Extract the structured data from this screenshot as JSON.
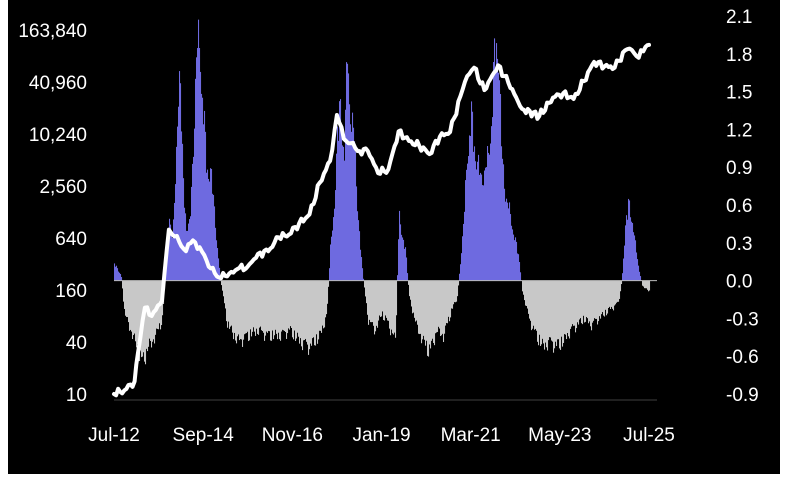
{
  "chart_data": {
    "type": "bar+line",
    "title": "",
    "xlabel": "",
    "ylabel_left": "",
    "ylabel_right": "",
    "colors": {
      "background": "#000000",
      "positive_bars": "#6e6ae0",
      "negative_bars": "#c8c8c8",
      "line": "#ffffff",
      "text": "#ffffff",
      "zero_line": "#bdbdbd"
    },
    "left_axis": {
      "scale": "log",
      "ticks": [
        "163,840",
        "40,960",
        "10,240",
        "2,560",
        "640",
        "160",
        "40",
        "10"
      ],
      "tick_values": [
        163840,
        40960,
        10240,
        2560,
        640,
        160,
        40,
        10
      ],
      "ylim": [
        10,
        163840
      ]
    },
    "right_axis": {
      "scale": "linear",
      "ticks": [
        "2.1",
        "1.8",
        "1.5",
        "1.2",
        "0.9",
        "0.6",
        "0.3",
        "0.0",
        "-0.3",
        "-0.6",
        "-0.9"
      ],
      "tick_values": [
        2.1,
        1.8,
        1.5,
        1.2,
        0.9,
        0.6,
        0.3,
        0.0,
        -0.3,
        -0.6,
        -0.9
      ],
      "ylim": [
        -0.9,
        2.1
      ]
    },
    "x_axis": {
      "ticks": [
        "Jul-12",
        "Sep-14",
        "Nov-16",
        "Jan-19",
        "Mar-21",
        "May-23",
        "Jul-25"
      ],
      "tick_dates": [
        "2012-07",
        "2014-09",
        "2016-11",
        "2019-01",
        "2021-03",
        "2023-05",
        "2025-07"
      ],
      "xlim": [
        "2012-07",
        "2025-07"
      ]
    },
    "line_series": {
      "axis": "left",
      "points": [
        [
          "2012-07",
          10
        ],
        [
          "2012-10",
          11
        ],
        [
          "2013-01",
          14
        ],
        [
          "2013-02",
          30
        ],
        [
          "2013-04",
          100
        ],
        [
          "2013-06",
          80
        ],
        [
          "2013-09",
          120
        ],
        [
          "2013-11",
          800
        ],
        [
          "2013-12",
          700
        ],
        [
          "2014-02",
          580
        ],
        [
          "2014-04",
          450
        ],
        [
          "2014-06",
          600
        ],
        [
          "2014-08",
          500
        ],
        [
          "2014-10",
          350
        ],
        [
          "2015-01",
          230
        ],
        [
          "2015-04",
          230
        ],
        [
          "2015-07",
          280
        ],
        [
          "2015-10",
          300
        ],
        [
          "2016-01",
          420
        ],
        [
          "2016-04",
          450
        ],
        [
          "2016-07",
          650
        ],
        [
          "2016-10",
          700
        ],
        [
          "2017-01",
          950
        ],
        [
          "2017-04",
          1200
        ],
        [
          "2017-07",
          2800
        ],
        [
          "2017-10",
          5000
        ],
        [
          "2017-12",
          17000
        ],
        [
          "2018-02",
          9000
        ],
        [
          "2018-04",
          8000
        ],
        [
          "2018-06",
          6500
        ],
        [
          "2018-09",
          6500
        ],
        [
          "2018-12",
          3600
        ],
        [
          "2019-03",
          4000
        ],
        [
          "2019-06",
          11000
        ],
        [
          "2019-09",
          8500
        ],
        [
          "2019-12",
          7500
        ],
        [
          "2020-03",
          6000
        ],
        [
          "2020-06",
          9500
        ],
        [
          "2020-09",
          10800
        ],
        [
          "2020-12",
          28000
        ],
        [
          "2021-02",
          48000
        ],
        [
          "2021-04",
          60000
        ],
        [
          "2021-07",
          33000
        ],
        [
          "2021-11",
          64000
        ],
        [
          "2022-02",
          40000
        ],
        [
          "2022-06",
          20000
        ],
        [
          "2022-11",
          16500
        ],
        [
          "2023-03",
          27000
        ],
        [
          "2023-06",
          30500
        ],
        [
          "2023-09",
          26000
        ],
        [
          "2023-12",
          42000
        ],
        [
          "2024-03",
          70000
        ],
        [
          "2024-06",
          62000
        ],
        [
          "2024-09",
          60000
        ],
        [
          "2024-12",
          95000
        ],
        [
          "2025-02",
          96000
        ],
        [
          "2025-04",
          78000
        ],
        [
          "2025-06",
          105000
        ],
        [
          "2025-07",
          110000
        ]
      ]
    },
    "bar_series": {
      "axis": "right",
      "points": [
        [
          "2012-07",
          0.15
        ],
        [
          "2012-09",
          0.05
        ],
        [
          "2012-10",
          -0.3
        ],
        [
          "2013-01",
          -0.55
        ],
        [
          "2013-03",
          -0.75
        ],
        [
          "2013-05",
          -0.6
        ],
        [
          "2013-07",
          -0.5
        ],
        [
          "2013-09",
          -0.35
        ],
        [
          "2013-11",
          0.55
        ],
        [
          "2013-12",
          0.4
        ],
        [
          "2014-01",
          1.0
        ],
        [
          "2014-02",
          2.1
        ],
        [
          "2014-03",
          0.9
        ],
        [
          "2014-04",
          0.5
        ],
        [
          "2014-05",
          0.5
        ],
        [
          "2014-06",
          1.2
        ],
        [
          "2014-07",
          2.1
        ],
        [
          "2014-08",
          2.1
        ],
        [
          "2014-09",
          1.5
        ],
        [
          "2014-10",
          1.0
        ],
        [
          "2014-11",
          1.0
        ],
        [
          "2014-12",
          0.7
        ],
        [
          "2015-01",
          0.3
        ],
        [
          "2015-02",
          0.0
        ],
        [
          "2015-04",
          -0.4
        ],
        [
          "2015-07",
          -0.55
        ],
        [
          "2015-10",
          -0.5
        ],
        [
          "2016-01",
          -0.45
        ],
        [
          "2016-04",
          -0.5
        ],
        [
          "2016-07",
          -0.5
        ],
        [
          "2016-10",
          -0.45
        ],
        [
          "2017-01",
          -0.55
        ],
        [
          "2017-04",
          -0.6
        ],
        [
          "2017-07",
          -0.5
        ],
        [
          "2017-09",
          -0.3
        ],
        [
          "2017-10",
          0.3
        ],
        [
          "2017-11",
          0.6
        ],
        [
          "2017-12",
          1.3
        ],
        [
          "2018-01",
          1.6
        ],
        [
          "2018-02",
          1.1
        ],
        [
          "2018-03",
          2.1
        ],
        [
          "2018-04",
          1.4
        ],
        [
          "2018-05",
          1.3
        ],
        [
          "2018-06",
          0.6
        ],
        [
          "2018-07",
          0.2
        ],
        [
          "2018-08",
          -0.1
        ],
        [
          "2018-09",
          -0.35
        ],
        [
          "2018-11",
          -0.45
        ],
        [
          "2019-01",
          -0.3
        ],
        [
          "2019-03",
          -0.4
        ],
        [
          "2019-05",
          -0.55
        ],
        [
          "2019-06",
          0.6
        ],
        [
          "2019-07",
          0.4
        ],
        [
          "2019-08",
          0.25
        ],
        [
          "2019-09",
          -0.15
        ],
        [
          "2019-11",
          -0.4
        ],
        [
          "2020-01",
          -0.55
        ],
        [
          "2020-03",
          -0.65
        ],
        [
          "2020-05",
          -0.45
        ],
        [
          "2020-07",
          -0.5
        ],
        [
          "2020-09",
          -0.3
        ],
        [
          "2020-11",
          -0.15
        ],
        [
          "2020-12",
          0.2
        ],
        [
          "2021-01",
          0.6
        ],
        [
          "2021-02",
          1.2
        ],
        [
          "2021-03",
          1.5
        ],
        [
          "2021-04",
          1.2
        ],
        [
          "2021-06",
          0.9
        ],
        [
          "2021-08",
          1.1
        ],
        [
          "2021-09",
          1.5
        ],
        [
          "2021-10",
          2.1
        ],
        [
          "2021-11",
          2.1
        ],
        [
          "2021-12",
          1.1
        ],
        [
          "2022-01",
          0.8
        ],
        [
          "2022-03",
          0.5
        ],
        [
          "2022-05",
          0.2
        ],
        [
          "2022-06",
          -0.1
        ],
        [
          "2022-08",
          -0.35
        ],
        [
          "2022-10",
          -0.5
        ],
        [
          "2022-12",
          -0.6
        ],
        [
          "2023-02",
          -0.55
        ],
        [
          "2023-04",
          -0.6
        ],
        [
          "2023-06",
          -0.55
        ],
        [
          "2023-08",
          -0.45
        ],
        [
          "2023-10",
          -0.4
        ],
        [
          "2023-12",
          -0.35
        ],
        [
          "2024-02",
          -0.4
        ],
        [
          "2024-04",
          -0.35
        ],
        [
          "2024-06",
          -0.3
        ],
        [
          "2024-08",
          -0.25
        ],
        [
          "2024-10",
          -0.2
        ],
        [
          "2024-11",
          0.0
        ],
        [
          "2024-12",
          0.5
        ],
        [
          "2025-01",
          0.7
        ],
        [
          "2025-02",
          0.55
        ],
        [
          "2025-03",
          0.3
        ],
        [
          "2025-04",
          0.1
        ],
        [
          "2025-05",
          -0.05
        ],
        [
          "2025-07",
          -0.1
        ]
      ]
    },
    "grid": false,
    "legend": "none"
  }
}
